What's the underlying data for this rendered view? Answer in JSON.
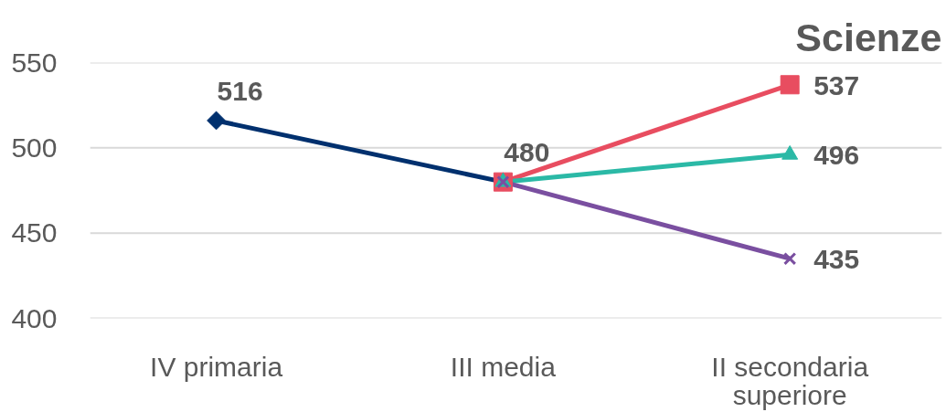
{
  "chart_data": {
    "type": "line",
    "title": "Scienze",
    "categories": [
      "IV primaria",
      "III media",
      "II secondaria superiore"
    ],
    "ylim": [
      400,
      550
    ],
    "yticks": [
      400,
      450,
      500,
      550
    ],
    "grid": "y",
    "line_style": "solid",
    "series": [
      {
        "color": "#00306e",
        "marker": "diamond",
        "values": [
          516,
          480,
          null
        ],
        "value_labels": [
          "516",
          "480",
          null
        ]
      },
      {
        "color": "#e84d60",
        "marker": "square",
        "values": [
          null,
          480,
          537
        ],
        "value_labels": [
          null,
          null,
          "537"
        ]
      },
      {
        "color": "#2bb9a6",
        "marker": "triangle",
        "values": [
          null,
          480,
          496
        ],
        "value_labels": [
          null,
          null,
          "496"
        ]
      },
      {
        "color": "#7a4fa0",
        "marker": "cross",
        "values": [
          null,
          480,
          435
        ],
        "value_labels": [
          null,
          null,
          "435"
        ]
      }
    ]
  }
}
